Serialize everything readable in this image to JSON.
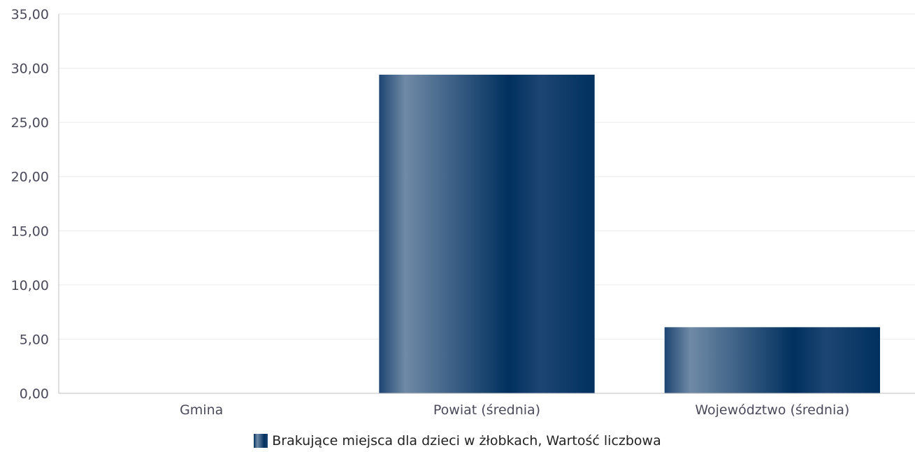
{
  "chart_data": {
    "type": "bar",
    "categories": [
      "Gmina",
      "Powiat (średnia)",
      "Województwo (średnia)"
    ],
    "series": [
      {
        "name": "Brakujące miejsca dla dzieci w żłobkach, Wartość liczbowa",
        "values": [
          0,
          29.4,
          6.1
        ]
      }
    ],
    "ylim": [
      0,
      35
    ],
    "yticks": [
      0,
      5,
      10,
      15,
      20,
      25,
      30,
      35
    ],
    "ytick_labels": [
      "0,00",
      "5,00",
      "10,00",
      "15,00",
      "20,00",
      "25,00",
      "30,00",
      "35,00"
    ],
    "grid": true,
    "legend_position": "bottom",
    "colors": {
      "bar_dark": "#00305e",
      "bar_light": "#6f8aa6",
      "bar_mid": "#3b5f85",
      "grid": "#ebebeb",
      "axis": "#bfbfbf"
    }
  }
}
